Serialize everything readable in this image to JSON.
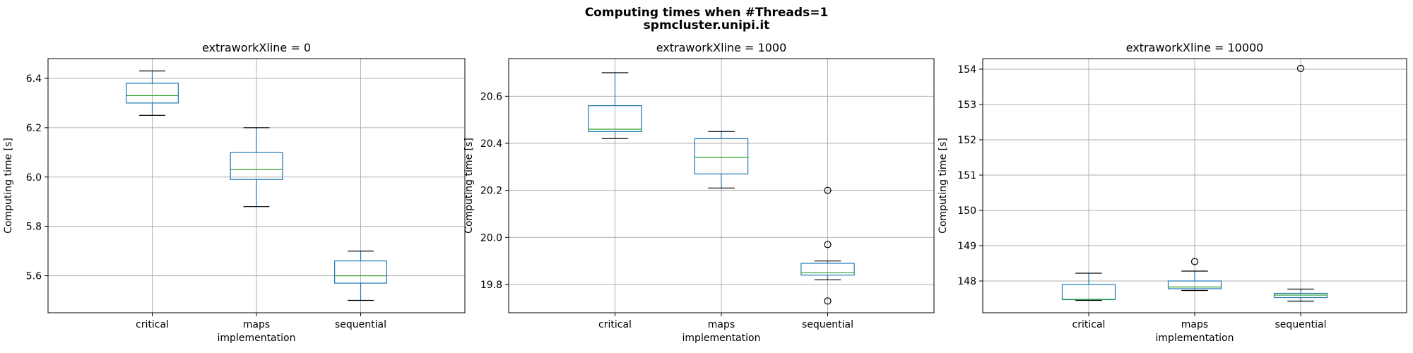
{
  "figure": {
    "title_line1": "Computing times when #Threads=1",
    "title_line2": "spmcluster.unipi.it"
  },
  "chart_data": [
    {
      "type": "box",
      "title": "extraworkXline = 0",
      "xlabel": "implementation",
      "ylabel": "Computing time [s]",
      "categories": [
        "critical",
        "maps",
        "sequential"
      ],
      "ylim": [
        5.45,
        6.48
      ],
      "yticks": [
        5.6,
        5.8,
        6.0,
        6.2,
        6.4
      ],
      "ytick_labels": [
        "5.6",
        "5.8",
        "6.0",
        "6.2",
        "6.4"
      ],
      "grid": true,
      "boxes": [
        {
          "category": "critical",
          "whisker_low": 6.25,
          "q1": 6.3,
          "median": 6.33,
          "q3": 6.38,
          "whisker_high": 6.43,
          "outliers": []
        },
        {
          "category": "maps",
          "whisker_low": 5.88,
          "q1": 5.99,
          "median": 6.03,
          "q3": 6.1,
          "whisker_high": 6.2,
          "outliers": []
        },
        {
          "category": "sequential",
          "whisker_low": 5.5,
          "q1": 5.57,
          "median": 5.6,
          "q3": 5.66,
          "whisker_high": 5.7,
          "outliers": []
        }
      ]
    },
    {
      "type": "box",
      "title": "extraworkXline = 1000",
      "xlabel": "implementation",
      "ylabel": "Computing time [s]",
      "categories": [
        "critical",
        "maps",
        "sequential"
      ],
      "ylim": [
        19.68,
        20.76
      ],
      "yticks": [
        19.8,
        20.0,
        20.2,
        20.4,
        20.6
      ],
      "ytick_labels": [
        "19.8",
        "20.0",
        "20.2",
        "20.4",
        "20.6"
      ],
      "grid": true,
      "boxes": [
        {
          "category": "critical",
          "whisker_low": 20.42,
          "q1": 20.45,
          "median": 20.46,
          "q3": 20.56,
          "whisker_high": 20.7,
          "outliers": []
        },
        {
          "category": "maps",
          "whisker_low": 20.21,
          "q1": 20.27,
          "median": 20.34,
          "q3": 20.42,
          "whisker_high": 20.45,
          "outliers": []
        },
        {
          "category": "sequential",
          "whisker_low": 19.82,
          "q1": 19.84,
          "median": 19.85,
          "q3": 19.89,
          "whisker_high": 19.9,
          "outliers": [
            20.2,
            19.97,
            19.73
          ]
        }
      ]
    },
    {
      "type": "box",
      "title": "extraworkXline = 10000",
      "xlabel": "implementation",
      "ylabel": "Computing time [s]",
      "categories": [
        "critical",
        "maps",
        "sequential"
      ],
      "ylim": [
        147.1,
        154.3
      ],
      "yticks": [
        148,
        149,
        150,
        151,
        152,
        153,
        154
      ],
      "ytick_labels": [
        "148",
        "149",
        "150",
        "151",
        "152",
        "153",
        "154"
      ],
      "grid": true,
      "boxes": [
        {
          "category": "critical",
          "whisker_low": 147.45,
          "q1": 147.47,
          "median": 147.48,
          "q3": 147.9,
          "whisker_high": 148.22,
          "outliers": []
        },
        {
          "category": "maps",
          "whisker_low": 147.73,
          "q1": 147.78,
          "median": 147.83,
          "q3": 148.0,
          "whisker_high": 148.28,
          "outliers": [
            148.55
          ]
        },
        {
          "category": "sequential",
          "whisker_low": 147.43,
          "q1": 147.53,
          "median": 147.6,
          "q3": 147.65,
          "whisker_high": 147.77,
          "outliers": [
            154.02
          ]
        }
      ]
    }
  ],
  "colors": {
    "box": "#1f77b4",
    "median": "#2ca02c",
    "whisker": "#1f77b4",
    "cap": "#000000",
    "grid": "#b0b0b0",
    "axis": "#000000",
    "flier_edge": "#000000"
  }
}
